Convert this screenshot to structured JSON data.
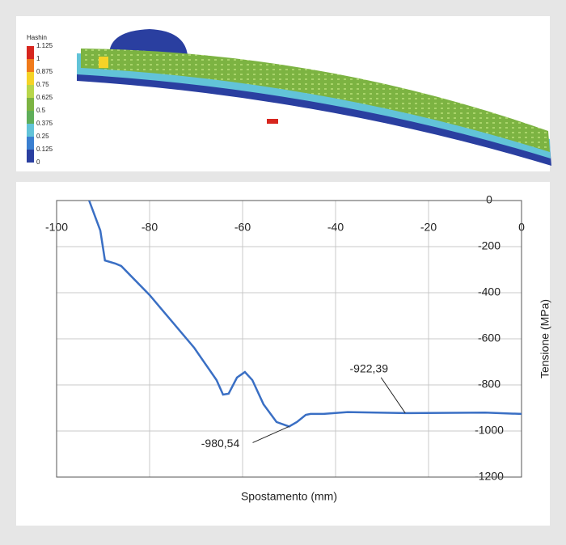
{
  "figure": {
    "legend_title": "Hashin",
    "legend_labels": [
      "1.125",
      "1",
      "0.875",
      "0.75",
      "0.625",
      "0.5",
      "0.375",
      "0.25",
      "0.125",
      "0"
    ],
    "legend_colors": [
      "#d7261e",
      "#f07a1a",
      "#f5d327",
      "#b8d64a",
      "#7cb342",
      "#5fae5a",
      "#62c3d8",
      "#3a7fd0",
      "#2a3fa0"
    ]
  },
  "chart_data": {
    "type": "line",
    "x_label": "Spostamento (mm)",
    "y_label": "Tensione (MPa)",
    "x": [
      -93,
      -90.6,
      -89.6,
      -87.3,
      -86.1,
      -80,
      -70.4,
      -65.6,
      -64.2,
      -63,
      -61.2,
      -59.5,
      -57.9,
      -55.5,
      -52.7,
      -50,
      -48.3,
      -46.4,
      -45.4,
      -42.6,
      -37.4,
      -25,
      -7.8,
      0
    ],
    "series": [
      {
        "color": "#3a6fc4",
        "values": [
          0,
          -130,
          -260,
          -274,
          -284,
          -410,
          -639,
          -779,
          -842,
          -838,
          -768,
          -744,
          -779,
          -884,
          -961,
          -980.54,
          -961,
          -930,
          -926,
          -926,
          -918,
          -922.39,
          -920,
          -926
        ]
      }
    ],
    "xlim": [
      -100,
      0
    ],
    "ylim": [
      -1200,
      0
    ],
    "xticks": [
      -100,
      -80,
      -60,
      -40,
      -20,
      0
    ],
    "yticks": [
      0,
      -200,
      -400,
      -600,
      -800,
      -1000,
      -1200
    ],
    "grid": true,
    "x_axis_side": "top",
    "y_axis_side": "right",
    "annotations": [
      {
        "text": "-922,39",
        "x": -25,
        "y": -922.39
      },
      {
        "text": "-980,54",
        "x": -50,
        "y": -980.54
      }
    ]
  }
}
